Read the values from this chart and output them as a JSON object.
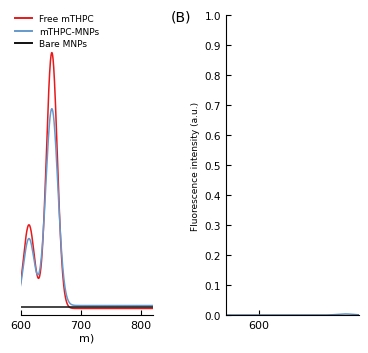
{
  "panel_A": {
    "xlim": [
      600,
      820
    ],
    "ylim": [
      -0.005,
      0.3
    ],
    "xticks": [
      600,
      700,
      800
    ],
    "xlabel_partial": "m)"
  },
  "panel_B": {
    "ylabel": "Fluorescence intensity (a.u.)",
    "xlim": [
      580,
      660
    ],
    "ylim": [
      0,
      1
    ],
    "yticks": [
      0,
      0.1,
      0.2,
      0.3,
      0.4,
      0.5,
      0.6,
      0.7,
      0.8,
      0.9,
      1.0
    ],
    "xticks": [
      600
    ],
    "xtick_labels": [
      "600"
    ]
  },
  "legend": {
    "labels": [
      "Free mTHPC",
      "mTHPC-MNPs",
      "Bare MNPs"
    ],
    "colors": [
      "#e8191a",
      "#6699cc",
      "#111111"
    ]
  },
  "colors": {
    "free_mthpc": "#e8191a",
    "mthpc_mnps": "#6699cc",
    "bare_mnps": "#111111"
  },
  "label_B": "(B)",
  "background": "#ffffff"
}
